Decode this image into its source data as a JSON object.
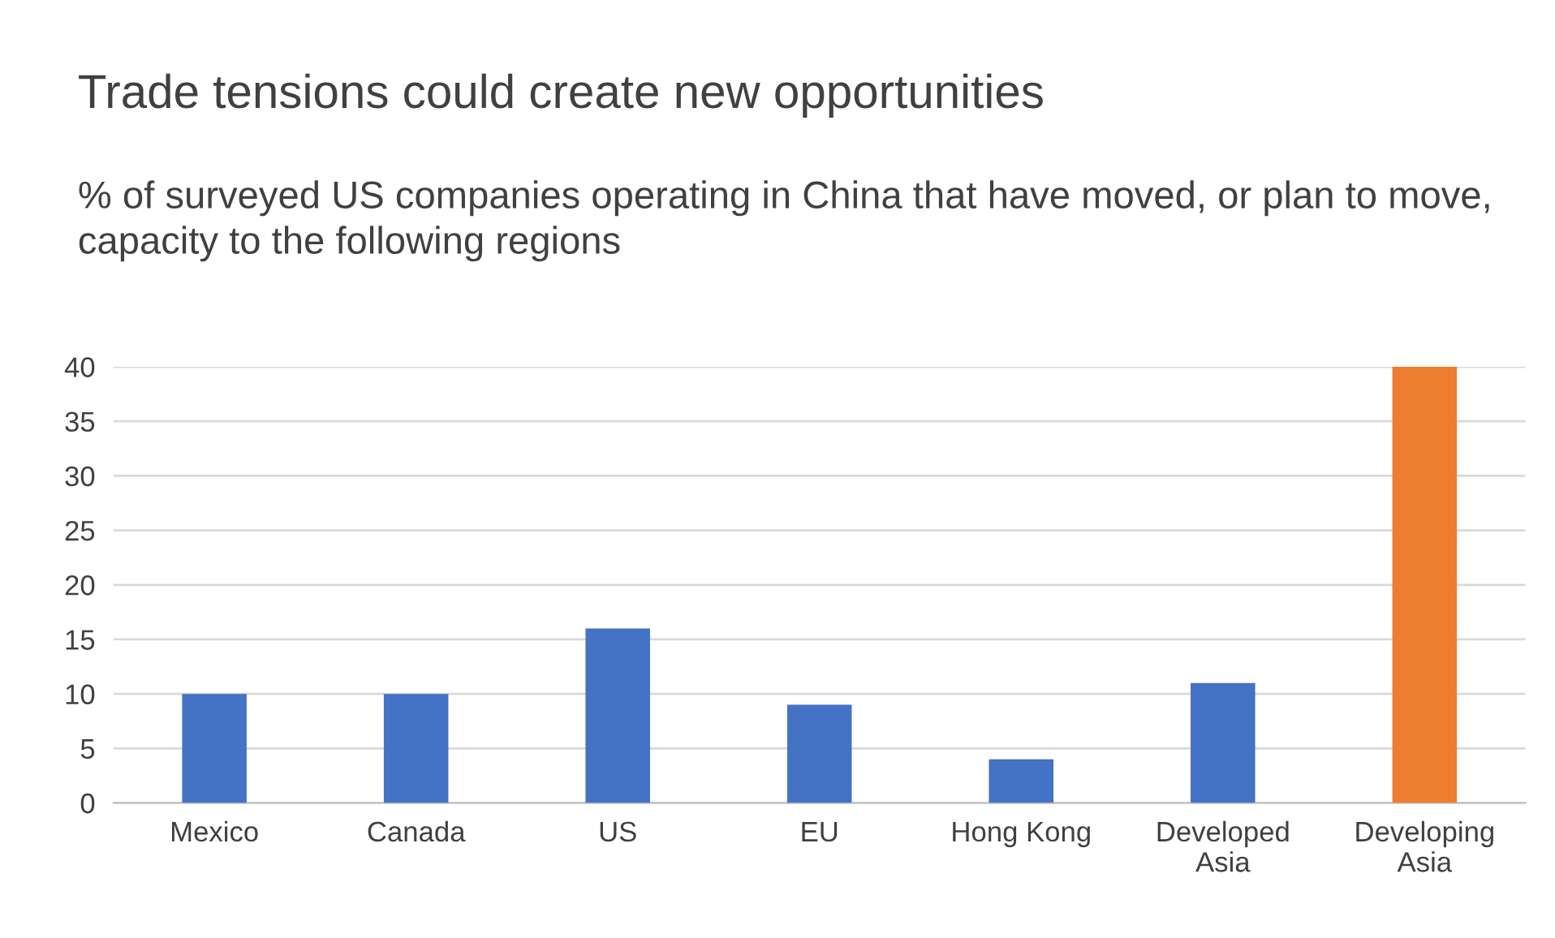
{
  "chart_data": {
    "type": "bar",
    "title": "Trade tensions could create new opportunities",
    "subtitle": "% of surveyed US companies operating in China that have moved, or plan to move, capacity to the following regions",
    "categories": [
      "Mexico",
      "Canada",
      "US",
      "EU",
      "Hong Kong",
      "Developed\nAsia",
      "Developing\nAsia"
    ],
    "values": [
      10,
      10,
      16,
      9,
      4,
      11,
      40
    ],
    "colors": [
      "#4472c4",
      "#4472c4",
      "#4472c4",
      "#4472c4",
      "#4472c4",
      "#4472c4",
      "#ed7d31"
    ],
    "ylim": [
      0,
      40
    ],
    "yticks": [
      0,
      5,
      10,
      15,
      20,
      25,
      30,
      35,
      40
    ],
    "grid": "y"
  }
}
